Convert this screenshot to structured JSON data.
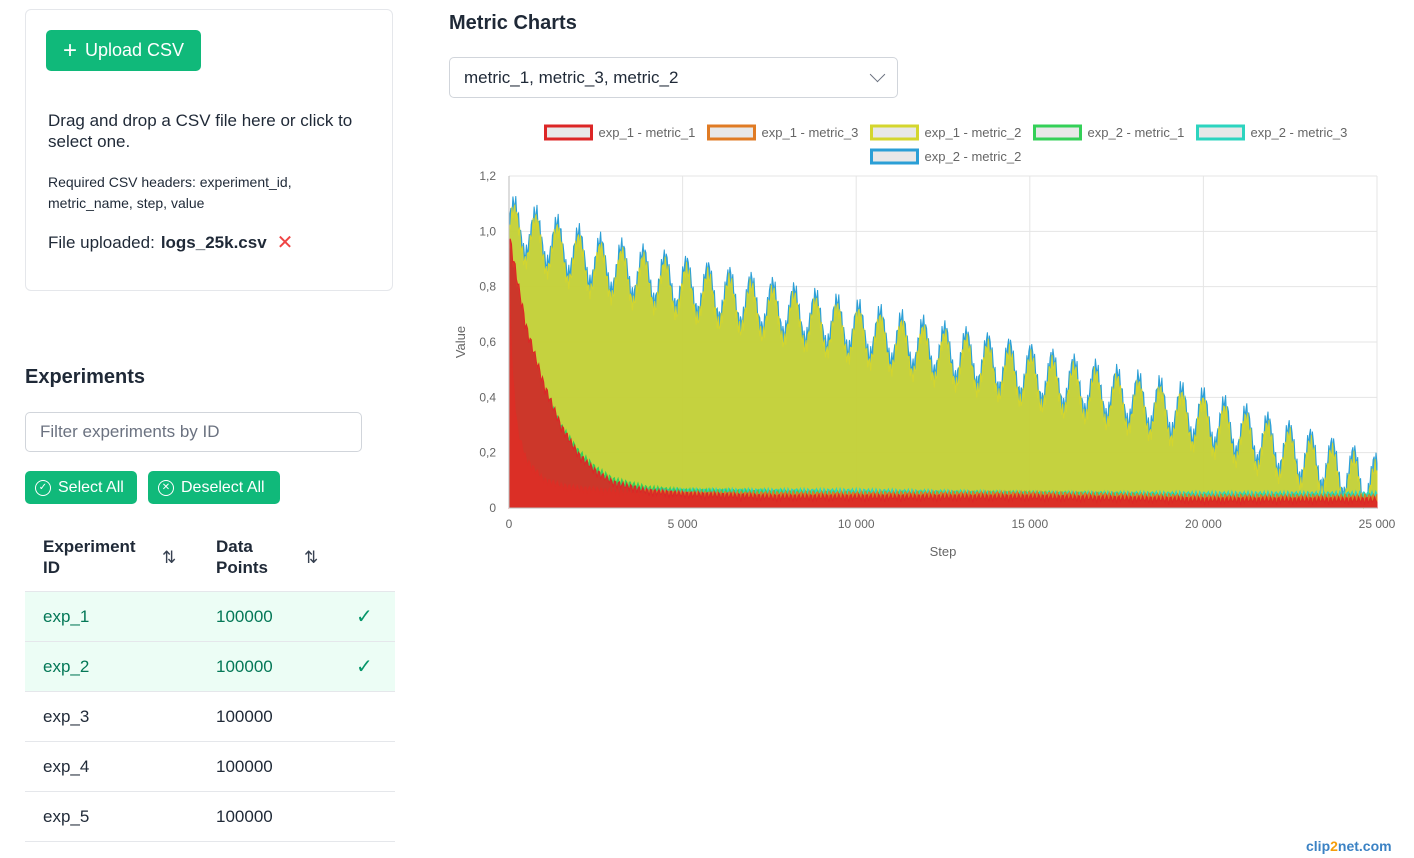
{
  "upload": {
    "button_label": "Upload CSV",
    "drop_text": "Drag and drop a CSV file here or click to select one.",
    "required_text": "Required CSV headers: experiment_id, metric_name, step, value",
    "file_prefix": "File uploaded:",
    "file_name": "logs_25k.csv",
    "remove_icon": "close-icon"
  },
  "experiments": {
    "title": "Experiments",
    "filter_placeholder": "Filter experiments by ID",
    "select_all": "Select All",
    "deselect_all": "Deselect All",
    "columns": [
      "Experiment ID",
      "Data Points"
    ],
    "rows": [
      {
        "id": "exp_1",
        "points": "100000",
        "selected": true
      },
      {
        "id": "exp_2",
        "points": "100000",
        "selected": true
      },
      {
        "id": "exp_3",
        "points": "100000",
        "selected": false
      },
      {
        "id": "exp_4",
        "points": "100000",
        "selected": false
      },
      {
        "id": "exp_5",
        "points": "100000",
        "selected": false
      }
    ]
  },
  "metrics": {
    "title": "Metric Charts",
    "selected": "metric_1, metric_3, metric_2"
  },
  "chart_data": {
    "type": "area",
    "xlabel": "Step",
    "ylabel": "Value",
    "xlim": [
      0,
      25000
    ],
    "ylim": [
      0,
      1.2
    ],
    "xticks": [
      "0",
      "5 000",
      "10 000",
      "15 000",
      "20 000",
      "25 000"
    ],
    "yticks": [
      "0",
      "0,2",
      "0,4",
      "0,6",
      "0,8",
      "1,0",
      "1,2"
    ],
    "grid": true,
    "legend": "top",
    "series": [
      {
        "name": "exp_1 - metric_1",
        "color": "#dc2626",
        "x": [
          0,
          250,
          500,
          1000,
          1500,
          2000,
          2500,
          3000,
          4000,
          5000,
          7500,
          10000,
          15000,
          20000,
          25000
        ],
        "values": [
          0.95,
          0.78,
          0.62,
          0.42,
          0.27,
          0.17,
          0.11,
          0.07,
          0.04,
          0.03,
          0.02,
          0.02,
          0.02,
          0.01,
          0.01
        ]
      },
      {
        "name": "exp_1 - metric_3",
        "color": "#e07b24",
        "x": [
          0,
          100,
          250,
          500,
          1000,
          1500,
          2000,
          3000,
          5000,
          10000,
          15000,
          20000,
          25000
        ],
        "values": [
          0.82,
          0.45,
          0.25,
          0.15,
          0.08,
          0.06,
          0.05,
          0.04,
          0.03,
          0.03,
          0.03,
          0.02,
          0.02
        ]
      },
      {
        "name": "exp_1 - metric_2",
        "color": "#d4d62e",
        "x": [
          0,
          2500,
          5000,
          7500,
          10000,
          12500,
          15000,
          17500,
          20000,
          22500,
          25000
        ],
        "values": [
          1.0,
          0.86,
          0.78,
          0.7,
          0.62,
          0.54,
          0.46,
          0.38,
          0.3,
          0.18,
          0.06
        ]
      },
      {
        "name": "exp_2 - metric_1",
        "color": "#34d058",
        "x": [
          0,
          250,
          500,
          1000,
          1500,
          2000,
          2500,
          3000,
          4000,
          5000,
          10000,
          15000,
          20000,
          25000
        ],
        "values": [
          0.9,
          0.75,
          0.6,
          0.4,
          0.27,
          0.18,
          0.12,
          0.08,
          0.05,
          0.04,
          0.03,
          0.03,
          0.02,
          0.02
        ]
      },
      {
        "name": "exp_2 - metric_3",
        "color": "#2dd4bf",
        "x": [
          0,
          100,
          250,
          500,
          1000,
          2000,
          3000,
          5000,
          10000,
          15000,
          20000,
          25000
        ],
        "values": [
          0.78,
          0.42,
          0.22,
          0.14,
          0.08,
          0.05,
          0.04,
          0.04,
          0.04,
          0.03,
          0.03,
          0.03
        ]
      },
      {
        "name": "exp_2 - metric_2",
        "color": "#2b9fd6",
        "x": [
          0,
          2500,
          5000,
          7500,
          10000,
          12500,
          15000,
          17500,
          20000,
          22500,
          25000
        ],
        "values": [
          1.03,
          0.89,
          0.81,
          0.73,
          0.65,
          0.57,
          0.49,
          0.41,
          0.33,
          0.21,
          0.09
        ]
      }
    ]
  },
  "watermark": {
    "a": "clip",
    "b": "2",
    "c": "net.com"
  }
}
